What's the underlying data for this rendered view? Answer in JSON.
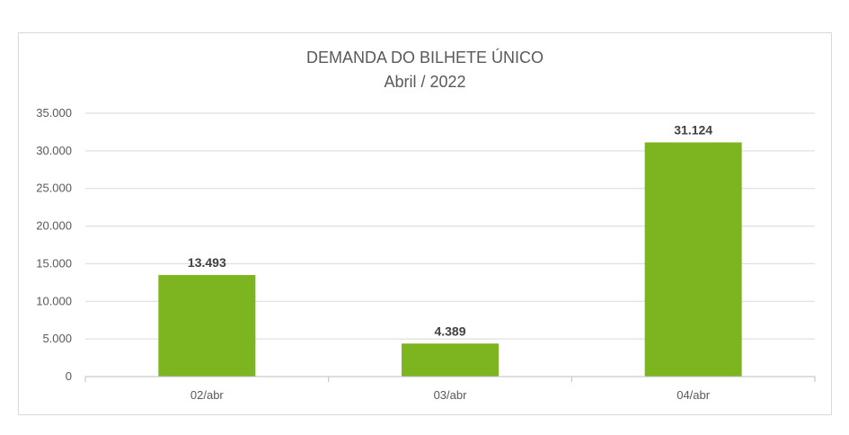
{
  "chart_data": {
    "type": "bar",
    "title": "DEMANDA DO BILHETE ÚNICO",
    "subtitle": "Abril / 2022",
    "categories": [
      "02/abr",
      "03/abr",
      "04/abr"
    ],
    "values": [
      13493,
      4389,
      31124
    ],
    "data_labels": [
      "13.493",
      "4.389",
      "31.124"
    ],
    "ylim": [
      0,
      35000
    ],
    "yticks": [
      0,
      5000,
      10000,
      15000,
      20000,
      25000,
      30000,
      35000
    ],
    "ytick_labels": [
      "0",
      "5.000",
      "10.000",
      "15.000",
      "20.000",
      "25.000",
      "30.000",
      "35.000"
    ],
    "xlabel": "",
    "ylabel": "",
    "grid": true,
    "legend": "none",
    "bar_color": "#7cb51f",
    "grid_color": "#d9d9d9"
  }
}
